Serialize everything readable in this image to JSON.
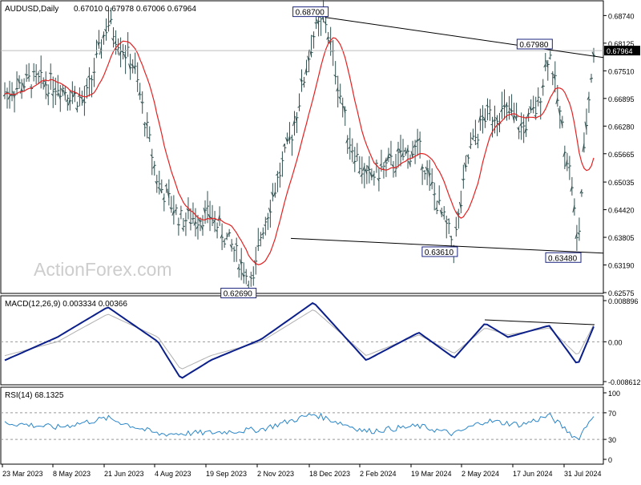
{
  "header": {
    "symbol": "AUDUSD,Daily",
    "ohlc": "0.67010 0.67978 0.67006 0.67964",
    "watermark": "ActionForex.com"
  },
  "colors": {
    "bars": "#2f4f4f",
    "ma": "#e32222",
    "trendline": "#000000",
    "macd_main": "#0b1f8a",
    "macd_signal": "#b0b0b0",
    "rsi": "#2a86c8",
    "current_price_box": "#000000",
    "label_border": "#1a237e"
  },
  "price_panel": {
    "current_price_label": "0.67964",
    "ticks": [
      "0.68740",
      "0.68125",
      "0.67510",
      "0.66895",
      "0.66280",
      "0.65665",
      "0.65035",
      "0.64420",
      "0.63805",
      "0.63190",
      "0.62575"
    ],
    "annotations": [
      {
        "label": "0.62690",
        "date": "2023-10-26",
        "price": 0.6269
      },
      {
        "label": "0.68700",
        "date": "2023-12-28",
        "price": 0.687
      },
      {
        "label": "0.63610",
        "date": "2024-04-19",
        "price": 0.6361
      },
      {
        "label": "0.67980",
        "date": "2024-07-11",
        "price": 0.6798
      },
      {
        "label": "0.63480",
        "date": "2024-08-05",
        "price": 0.6348
      }
    ]
  },
  "macd_panel": {
    "title": "MACD(12,26,9) 0.003334 0.00366",
    "ticks": [
      "0.008896",
      "0.00",
      "-0.008612"
    ]
  },
  "rsi_panel": {
    "title": "RSI(14) 68.1325",
    "ticks": [
      "100",
      "70",
      "30",
      "0"
    ]
  },
  "x_axis": {
    "labels": [
      "23 Mar 2023",
      "8 May 2023",
      "21 Jun 2023",
      "4 Aug 2023",
      "19 Sep 2023",
      "2 Nov 2023",
      "18 Dec 2023",
      "2 Feb 2024",
      "19 Mar 2024",
      "2 May 2024",
      "17 Jun 2024",
      "31 Jul 2024"
    ]
  },
  "chart_data": {
    "type": "line",
    "title": "AUDUSD,Daily",
    "x": [
      "2023-03-23",
      "2023-04-15",
      "2023-05-08",
      "2023-06-01",
      "2023-06-21",
      "2023-07-14",
      "2023-08-04",
      "2023-08-24",
      "2023-09-19",
      "2023-10-10",
      "2023-10-26",
      "2023-11-02",
      "2023-11-28",
      "2023-12-18",
      "2023-12-28",
      "2024-01-18",
      "2024-02-02",
      "2024-02-21",
      "2024-03-19",
      "2024-04-05",
      "2024-04-19",
      "2024-05-02",
      "2024-05-16",
      "2024-06-05",
      "2024-06-17",
      "2024-07-01",
      "2024-07-11",
      "2024-07-24",
      "2024-07-31",
      "2024-08-05",
      "2024-08-12",
      "2024-08-19"
    ],
    "series": [
      {
        "name": "AUDUSD",
        "values": [
          0.67,
          0.673,
          0.672,
          0.668,
          0.686,
          0.676,
          0.65,
          0.642,
          0.643,
          0.635,
          0.6269,
          0.639,
          0.66,
          0.683,
          0.687,
          0.66,
          0.651,
          0.654,
          0.658,
          0.645,
          0.6361,
          0.657,
          0.665,
          0.666,
          0.662,
          0.667,
          0.6798,
          0.66,
          0.65,
          0.6348,
          0.662,
          0.6796
        ]
      }
    ],
    "macd": {
      "x": [
        "2023-03-23",
        "2023-05-08",
        "2023-06-21",
        "2023-08-04",
        "2023-08-24",
        "2023-09-19",
        "2023-11-02",
        "2023-12-18",
        "2024-02-02",
        "2024-03-19",
        "2024-04-19",
        "2024-05-16",
        "2024-06-05",
        "2024-07-11",
        "2024-08-05",
        "2024-08-19"
      ],
      "main": [
        -0.004,
        0.001,
        0.0075,
        0.0,
        -0.008,
        -0.004,
        0.0005,
        0.0085,
        -0.004,
        0.002,
        -0.0035,
        0.004,
        0.001,
        0.0035,
        -0.005,
        0.0033
      ],
      "signal": [
        -0.003,
        0.0,
        0.006,
        0.001,
        -0.006,
        -0.003,
        0.0,
        0.007,
        -0.003,
        0.0015,
        -0.0025,
        0.003,
        0.0015,
        0.003,
        -0.003,
        0.0037
      ],
      "ylim": [
        -0.008612,
        0.008896
      ]
    },
    "rsi": {
      "x": [
        "2023-03-23",
        "2023-05-08",
        "2023-06-21",
        "2023-08-04",
        "2023-09-19",
        "2023-11-02",
        "2023-12-18",
        "2024-02-02",
        "2024-03-19",
        "2024-04-19",
        "2024-05-16",
        "2024-06-17",
        "2024-07-11",
        "2024-08-05",
        "2024-08-19"
      ],
      "values": [
        55,
        48,
        62,
        38,
        40,
        45,
        68,
        42,
        50,
        38,
        58,
        52,
        66,
        30,
        68.1325
      ],
      "ylim": [
        0,
        100
      ]
    },
    "ylim": [
      0.62575,
      0.6905
    ],
    "xlim": [
      "2023-03-23",
      "2024-08-19"
    ],
    "grid": false,
    "legend": "none"
  }
}
